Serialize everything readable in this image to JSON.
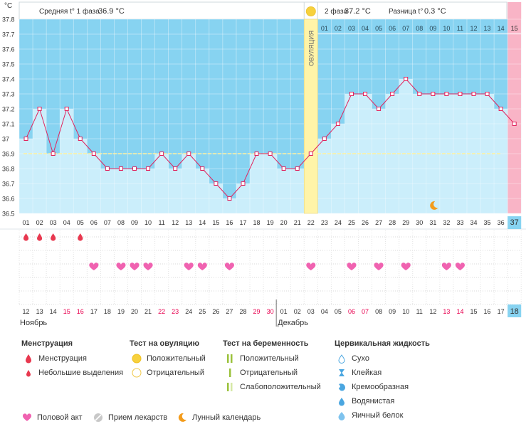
{
  "summary": {
    "phase1_label": "Средняя t° 1 фаза",
    "phase1_value": "36.9 °C",
    "phase2_label": "2 фаза",
    "phase2_value": "37.2 °C",
    "diff_label": "Разница t°",
    "diff_value": "0.3 °C",
    "unit": "°C",
    "ovulation_label": "ОВУЛЯЦИЯ"
  },
  "chart_data": {
    "type": "line",
    "ylim": [
      36.5,
      37.8
    ],
    "yticks": [
      "37.8",
      "37.7",
      "37.6",
      "37.5",
      "37.4",
      "37.3",
      "37.2",
      "37.1",
      "37",
      "36.9",
      "36.8",
      "36.7",
      "36.6",
      "36.5"
    ],
    "cycle_days": [
      "01",
      "02",
      "03",
      "04",
      "05",
      "06",
      "07",
      "08",
      "09",
      "10",
      "11",
      "12",
      "13",
      "14",
      "15",
      "16",
      "17",
      "18",
      "19",
      "20",
      "21",
      "22",
      "23",
      "24",
      "25",
      "26",
      "27",
      "28",
      "29",
      "30",
      "31",
      "32",
      "33",
      "34",
      "35",
      "36",
      "37"
    ],
    "temperatures": [
      37.0,
      37.2,
      36.9,
      37.2,
      37.0,
      36.9,
      36.8,
      36.8,
      36.8,
      36.8,
      36.9,
      36.8,
      36.9,
      36.8,
      36.7,
      36.6,
      36.7,
      36.9,
      36.9,
      36.8,
      36.8,
      36.9,
      37.0,
      37.1,
      37.3,
      37.3,
      37.2,
      37.3,
      37.4,
      37.3,
      37.3,
      37.3,
      37.3,
      37.3,
      37.3,
      37.2,
      37.1
    ],
    "coverline": 36.9,
    "ovulation_day": 22,
    "phase2_day_labels": [
      "01",
      "02",
      "03",
      "04",
      "05",
      "06",
      "07",
      "08",
      "09",
      "10",
      "11",
      "12",
      "13",
      "14",
      "15"
    ],
    "menstruation": [
      1,
      2,
      3,
      5
    ],
    "intercourse": [
      6,
      8,
      9,
      10,
      13,
      14,
      16,
      22,
      25,
      27,
      29,
      32,
      33
    ],
    "lunar_day": 31,
    "dates": [
      "12",
      "13",
      "14",
      "15",
      "16",
      "17",
      "18",
      "19",
      "20",
      "21",
      "22",
      "23",
      "24",
      "25",
      "26",
      "27",
      "28",
      "29",
      "30",
      "01",
      "02",
      "03",
      "04",
      "05",
      "06",
      "07",
      "08",
      "09",
      "10",
      "11",
      "12",
      "13",
      "14",
      "15",
      "16",
      "17",
      "18"
    ],
    "date_colors": [
      "normal",
      "normal",
      "normal",
      "red",
      "red",
      "normal",
      "normal",
      "normal",
      "normal",
      "normal",
      "red",
      "red",
      "normal",
      "normal",
      "normal",
      "normal",
      "normal",
      "red",
      "red",
      "normal",
      "normal",
      "normal",
      "normal",
      "normal",
      "red",
      "red",
      "normal",
      "normal",
      "normal",
      "normal",
      "normal",
      "red",
      "red",
      "normal",
      "normal",
      "normal",
      "normal"
    ],
    "months": [
      {
        "label": "Ноябрь",
        "start": 1
      },
      {
        "label": "Декабрь",
        "start": 20
      }
    ]
  },
  "colors": {
    "phase_bg": "#87d3f1",
    "column_fill": "#cbeefb",
    "ovulation": "#fff4a8",
    "line": "#e0245e",
    "coverline": "#fff2a0",
    "heart": "#f062b0",
    "drop": "#e8384f",
    "red_text": "#e8004f",
    "last_day": "#f9b4c6",
    "current_cell": "#87d3f1"
  },
  "legend": {
    "menstruation": {
      "title": "Менструация",
      "items": [
        "Менструация",
        "Небольшие выделения"
      ]
    },
    "ovulation_test": {
      "title": "Тест на овуляцию",
      "items": [
        "Положительный",
        "Отрицательный"
      ]
    },
    "pregnancy_test": {
      "title": "Тест на беременность",
      "items": [
        "Положительный",
        "Отрицательный",
        "Слабоположительный"
      ]
    },
    "cervical": {
      "title": "Цервикальная жидкость",
      "items": [
        "Сухо",
        "Клейкая",
        "Кремообразная",
        "Водянистая",
        "Яичный белок"
      ]
    },
    "bottom": [
      "Половой акт",
      "Прием лекарств",
      "Лунный календарь"
    ]
  }
}
